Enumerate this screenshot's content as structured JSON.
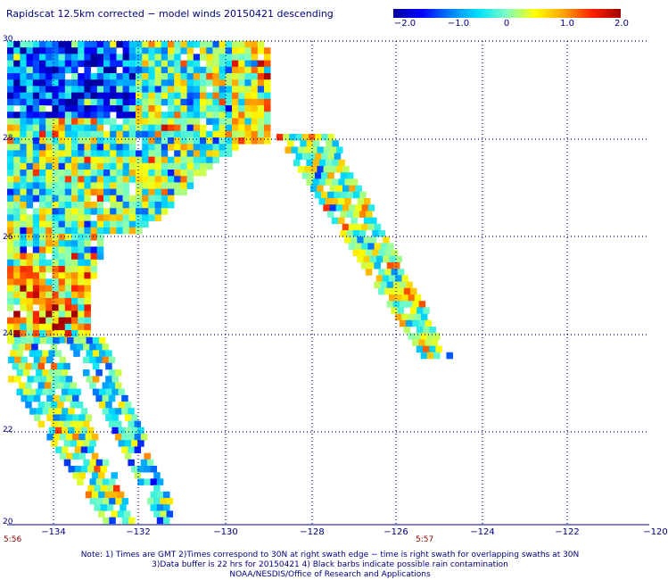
{
  "title": "Rapidscat 12.5km corrected − model winds 20150421 descending",
  "colorbar": {
    "colors": [
      "#0000a0",
      "#0000ff",
      "#0080ff",
      "#00e0ff",
      "#80ffc0",
      "#ffff00",
      "#ffa000",
      "#ff2000",
      "#a00000"
    ],
    "ticks": [
      "−2.0",
      "−1.0",
      "0",
      "1.0",
      "2.0"
    ]
  },
  "map": {
    "lat_labels": [
      "30",
      "28",
      "26",
      "24",
      "22",
      "20"
    ],
    "lon_labels": [
      "−134",
      "−132",
      "−130",
      "−128",
      "−126",
      "−124",
      "−122",
      "−120"
    ],
    "lat_range": [
      20,
      30
    ],
    "lon_range": [
      -135,
      -120
    ]
  },
  "times": {
    "left": "5:56",
    "right": "5:57"
  },
  "notes": [
    "Note: 1) Times are GMT 2)Times correspond to 30N at right swath edge − time is right swath for overlapping swaths at 30N",
    "3)Data buffer is 22 hrs for 20150421 4) Black barbs indicate possible rain contamination",
    "NOAA/NESDIS/Office of Research and Applications"
  ]
}
